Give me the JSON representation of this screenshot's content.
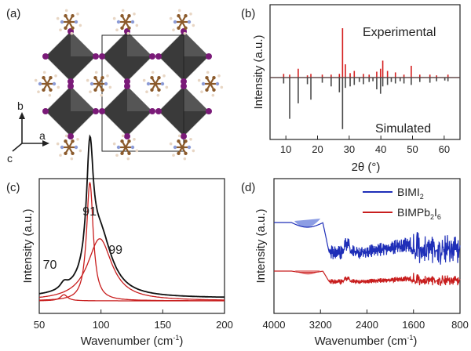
{
  "panels": {
    "a": {
      "label": "(a)",
      "axes": {
        "b": "b",
        "a": "a",
        "c": "c"
      }
    },
    "b": {
      "label": "(b)"
    },
    "c": {
      "label": "(c)"
    },
    "d": {
      "label": "(d)"
    }
  },
  "colors": {
    "experimental": "#d42020",
    "simulated": "#4a4a4a",
    "black": "#111111",
    "red": "#c81e1e",
    "blue": "#1f2fb8",
    "blue_fill": "#5b74d8",
    "red_fill": "#e06060",
    "octahedron": "#3a3a3a",
    "iodine": "#7a1a78",
    "carbon": "#8b5a2b",
    "nitrogen": "#8c9bd6",
    "hydrogen": "#e8d6c4"
  },
  "chart_data": [
    {
      "panel": "b",
      "type": "line",
      "xlabel_main": "2θ",
      "xlabel_unit": "(°)",
      "ylabel": "Intensity (a.u.)",
      "xlim": [
        5,
        65
      ],
      "xticks": [
        "10",
        "20",
        "30",
        "40",
        "50",
        "60"
      ],
      "series": [
        {
          "name": "Experimental",
          "baseline": 0.0,
          "peaks": [
            {
              "x": 9.3,
              "h": 0.05
            },
            {
              "x": 11.2,
              "h": 0.04
            },
            {
              "x": 13.9,
              "h": 0.12
            },
            {
              "x": 16.8,
              "h": 0.03
            },
            {
              "x": 17.9,
              "h": 0.05
            },
            {
              "x": 21.5,
              "h": 0.04
            },
            {
              "x": 24.3,
              "h": 0.04
            },
            {
              "x": 26.9,
              "h": 0.05
            },
            {
              "x": 27.9,
              "h": 0.67
            },
            {
              "x": 28.8,
              "h": 0.18
            },
            {
              "x": 30.3,
              "h": 0.06
            },
            {
              "x": 31.6,
              "h": 0.09
            },
            {
              "x": 34.5,
              "h": 0.05
            },
            {
              "x": 36.3,
              "h": 0.04
            },
            {
              "x": 38.7,
              "h": 0.08
            },
            {
              "x": 39.9,
              "h": 0.12
            },
            {
              "x": 40.6,
              "h": 0.23
            },
            {
              "x": 42.1,
              "h": 0.09
            },
            {
              "x": 44.6,
              "h": 0.07
            },
            {
              "x": 47.3,
              "h": 0.04
            },
            {
              "x": 49.6,
              "h": 0.16
            },
            {
              "x": 52.3,
              "h": 0.04
            },
            {
              "x": 55.5,
              "h": 0.04
            },
            {
              "x": 57.6,
              "h": 0.03
            },
            {
              "x": 61.2,
              "h": 0.04
            }
          ]
        },
        {
          "name": "Simulated",
          "baseline": 0.0,
          "peaks": [
            {
              "x": 9.3,
              "h": -0.08
            },
            {
              "x": 11.2,
              "h": -0.56
            },
            {
              "x": 13.9,
              "h": -0.35
            },
            {
              "x": 16.8,
              "h": -0.09
            },
            {
              "x": 17.9,
              "h": -0.3
            },
            {
              "x": 21.5,
              "h": -0.07
            },
            {
              "x": 24.3,
              "h": -0.12
            },
            {
              "x": 26.9,
              "h": -0.2
            },
            {
              "x": 27.9,
              "h": -0.7
            },
            {
              "x": 28.8,
              "h": -0.14
            },
            {
              "x": 30.3,
              "h": -0.12
            },
            {
              "x": 31.6,
              "h": -0.1
            },
            {
              "x": 33.2,
              "h": -0.06
            },
            {
              "x": 34.5,
              "h": -0.09
            },
            {
              "x": 36.3,
              "h": -0.06
            },
            {
              "x": 37.5,
              "h": -0.05
            },
            {
              "x": 38.7,
              "h": -0.16
            },
            {
              "x": 39.9,
              "h": -0.22
            },
            {
              "x": 40.6,
              "h": -0.12
            },
            {
              "x": 42.1,
              "h": -0.1
            },
            {
              "x": 43.3,
              "h": -0.06
            },
            {
              "x": 44.6,
              "h": -0.08
            },
            {
              "x": 46.1,
              "h": -0.05
            },
            {
              "x": 47.3,
              "h": -0.08
            },
            {
              "x": 49.6,
              "h": -0.1
            },
            {
              "x": 52.3,
              "h": -0.06
            },
            {
              "x": 55.5,
              "h": -0.07
            },
            {
              "x": 57.6,
              "h": -0.05
            },
            {
              "x": 60.2,
              "h": -0.04
            },
            {
              "x": 61.2,
              "h": -0.05
            }
          ]
        }
      ]
    },
    {
      "panel": "c",
      "type": "line",
      "xlabel_main": "Wavenumber (cm",
      "xlabel_sup": "-1",
      "xlabel_end": ")",
      "ylabel": "Intensity (a.u.)",
      "xlim": [
        50,
        200
      ],
      "xticks": [
        "50",
        "100",
        "150",
        "200"
      ],
      "annotations": [
        {
          "text": "91",
          "x": 92
        },
        {
          "text": "70",
          "x": 70
        },
        {
          "text": "99",
          "x": 99
        }
      ],
      "components": [
        {
          "center": 70,
          "amp": 0.045,
          "width": 7
        },
        {
          "center": 91,
          "amp": 0.86,
          "width": 6.5
        },
        {
          "center": 99,
          "amp": 0.45,
          "width": 24
        }
      ],
      "baseline": 0.02
    },
    {
      "panel": "d",
      "type": "line",
      "xlabel_main": "Wavenumber (cm",
      "xlabel_sup": "-1",
      "xlabel_end": ")",
      "ylabel": "Intensity (a.u.)",
      "xlim": [
        4000,
        800
      ],
      "xticks": [
        "4000",
        "3200",
        "2400",
        "1600",
        "800"
      ],
      "series": [
        {
          "name": "BIMI",
          "name_sub": "2",
          "name_end": ""
        },
        {
          "name": "BIMPb",
          "name_sub": "2",
          "name_mid": "I",
          "name_sub2": "6"
        }
      ]
    }
  ]
}
